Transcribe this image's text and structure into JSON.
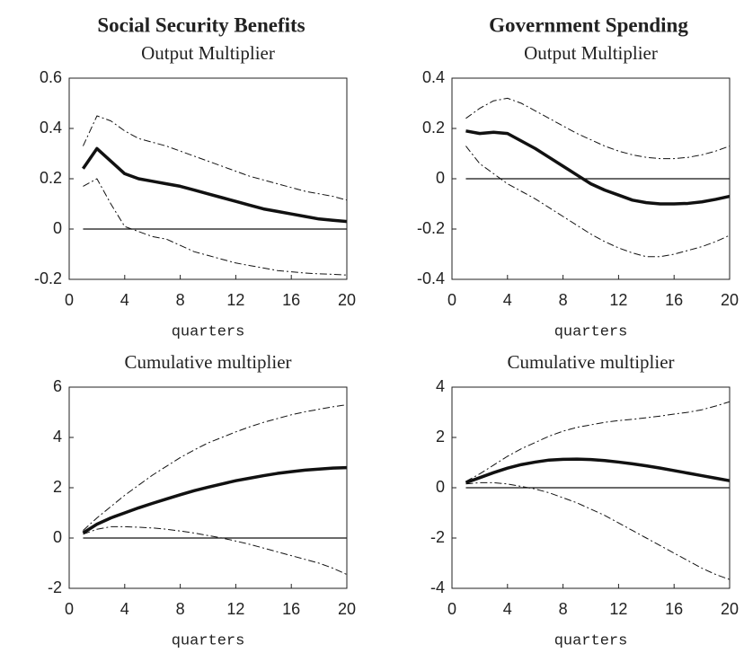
{
  "column_titles": [
    "Social Security Benefits",
    "Government Spending"
  ],
  "chart_data": [
    {
      "type": "line",
      "title": "Output Multiplier",
      "xlabel": "quarters",
      "x": [
        1,
        2,
        3,
        4,
        5,
        6,
        7,
        8,
        9,
        10,
        11,
        12,
        13,
        14,
        15,
        16,
        17,
        18,
        19,
        20
      ],
      "xlim": [
        0,
        20
      ],
      "xticks": [
        0,
        4,
        8,
        12,
        16,
        20
      ],
      "ylim": [
        -0.2,
        0.6
      ],
      "yticks": [
        -0.2,
        0,
        0.2,
        0.4,
        0.6
      ],
      "hline": 0,
      "series": [
        {
          "color": "#111111",
          "style": "solid",
          "width": 3.5,
          "values": [
            0.24,
            0.32,
            0.27,
            0.22,
            0.2,
            0.19,
            0.18,
            0.17,
            0.155,
            0.14,
            0.125,
            0.11,
            0.095,
            0.08,
            0.07,
            0.06,
            0.05,
            0.04,
            0.035,
            0.03
          ]
        },
        {
          "color": "#111111",
          "style": "dashdot",
          "width": 1,
          "values": [
            0.33,
            0.45,
            0.43,
            0.39,
            0.36,
            0.345,
            0.33,
            0.31,
            0.29,
            0.27,
            0.25,
            0.23,
            0.21,
            0.195,
            0.18,
            0.165,
            0.15,
            0.14,
            0.13,
            0.115
          ]
        },
        {
          "color": "#111111",
          "style": "dashdot",
          "width": 1,
          "values": [
            0.17,
            0.2,
            0.1,
            0.01,
            -0.01,
            -0.03,
            -0.04,
            -0.065,
            -0.09,
            -0.105,
            -0.12,
            -0.135,
            -0.145,
            -0.155,
            -0.165,
            -0.17,
            -0.175,
            -0.178,
            -0.18,
            -0.183
          ]
        }
      ]
    },
    {
      "type": "line",
      "title": "Output Multiplier",
      "xlabel": "quarters",
      "x": [
        1,
        2,
        3,
        4,
        5,
        6,
        7,
        8,
        9,
        10,
        11,
        12,
        13,
        14,
        15,
        16,
        17,
        18,
        19,
        20
      ],
      "xlim": [
        0,
        20
      ],
      "xticks": [
        0,
        4,
        8,
        12,
        16,
        20
      ],
      "ylim": [
        -0.4,
        0.4
      ],
      "yticks": [
        -0.4,
        -0.2,
        0,
        0.2,
        0.4
      ],
      "hline": 0,
      "series": [
        {
          "color": "#111111",
          "style": "solid",
          "width": 3.5,
          "values": [
            0.19,
            0.18,
            0.185,
            0.18,
            0.15,
            0.12,
            0.085,
            0.05,
            0.015,
            -0.02,
            -0.045,
            -0.065,
            -0.085,
            -0.095,
            -0.1,
            -0.1,
            -0.098,
            -0.092,
            -0.082,
            -0.07
          ]
        },
        {
          "color": "#111111",
          "style": "dashdot",
          "width": 1,
          "values": [
            0.24,
            0.28,
            0.31,
            0.32,
            0.3,
            0.27,
            0.24,
            0.21,
            0.18,
            0.155,
            0.13,
            0.11,
            0.095,
            0.085,
            0.08,
            0.08,
            0.085,
            0.095,
            0.11,
            0.13
          ]
        },
        {
          "color": "#111111",
          "style": "dashdot",
          "width": 1,
          "values": [
            0.13,
            0.06,
            0.02,
            -0.02,
            -0.05,
            -0.08,
            -0.115,
            -0.15,
            -0.185,
            -0.22,
            -0.25,
            -0.275,
            -0.295,
            -0.31,
            -0.31,
            -0.3,
            -0.285,
            -0.27,
            -0.25,
            -0.225
          ]
        }
      ]
    },
    {
      "type": "line",
      "title": "Cumulative multiplier",
      "xlabel": "quarters",
      "x": [
        1,
        2,
        3,
        4,
        5,
        6,
        7,
        8,
        9,
        10,
        11,
        12,
        13,
        14,
        15,
        16,
        17,
        18,
        19,
        20
      ],
      "xlim": [
        0,
        20
      ],
      "xticks": [
        0,
        4,
        8,
        12,
        16,
        20
      ],
      "ylim": [
        -2,
        6
      ],
      "yticks": [
        -2,
        0,
        2,
        4,
        6
      ],
      "hline": 0,
      "series": [
        {
          "color": "#111111",
          "style": "solid",
          "width": 3.5,
          "values": [
            0.2,
            0.55,
            0.8,
            1.0,
            1.2,
            1.38,
            1.55,
            1.72,
            1.88,
            2.02,
            2.15,
            2.28,
            2.38,
            2.48,
            2.57,
            2.64,
            2.7,
            2.74,
            2.78,
            2.8
          ]
        },
        {
          "color": "#111111",
          "style": "dashdot",
          "width": 1,
          "values": [
            0.3,
            0.8,
            1.25,
            1.7,
            2.1,
            2.5,
            2.85,
            3.2,
            3.5,
            3.78,
            4.0,
            4.22,
            4.42,
            4.6,
            4.75,
            4.9,
            5.02,
            5.12,
            5.22,
            5.3
          ]
        },
        {
          "color": "#111111",
          "style": "dashdot",
          "width": 1,
          "values": [
            0.15,
            0.35,
            0.45,
            0.45,
            0.43,
            0.4,
            0.35,
            0.28,
            0.2,
            0.1,
            0.0,
            -0.12,
            -0.25,
            -0.4,
            -0.55,
            -0.7,
            -0.85,
            -1.0,
            -1.2,
            -1.45
          ]
        }
      ]
    },
    {
      "type": "line",
      "title": "Cumulative multiplier",
      "xlabel": "quarters",
      "x": [
        1,
        2,
        3,
        4,
        5,
        6,
        7,
        8,
        9,
        10,
        11,
        12,
        13,
        14,
        15,
        16,
        17,
        18,
        19,
        20
      ],
      "xlim": [
        0,
        20
      ],
      "xticks": [
        0,
        4,
        8,
        12,
        16,
        20
      ],
      "ylim": [
        -4,
        4
      ],
      "yticks": [
        -4,
        -2,
        0,
        2,
        4
      ],
      "hline": 0,
      "series": [
        {
          "color": "#111111",
          "style": "solid",
          "width": 3.5,
          "values": [
            0.2,
            0.4,
            0.6,
            0.78,
            0.92,
            1.02,
            1.1,
            1.13,
            1.14,
            1.12,
            1.08,
            1.02,
            0.95,
            0.87,
            0.78,
            0.68,
            0.58,
            0.48,
            0.38,
            0.28
          ]
        },
        {
          "color": "#111111",
          "style": "dashdot",
          "width": 1,
          "values": [
            0.25,
            0.55,
            0.9,
            1.25,
            1.55,
            1.8,
            2.05,
            2.25,
            2.4,
            2.5,
            2.6,
            2.67,
            2.72,
            2.78,
            2.85,
            2.93,
            3.0,
            3.1,
            3.25,
            3.42
          ]
        },
        {
          "color": "#111111",
          "style": "dashdot",
          "width": 1,
          "values": [
            0.15,
            0.2,
            0.2,
            0.15,
            0.05,
            -0.05,
            -0.2,
            -0.4,
            -0.6,
            -0.85,
            -1.1,
            -1.4,
            -1.7,
            -2.0,
            -2.3,
            -2.6,
            -2.9,
            -3.2,
            -3.45,
            -3.65
          ]
        }
      ]
    }
  ]
}
